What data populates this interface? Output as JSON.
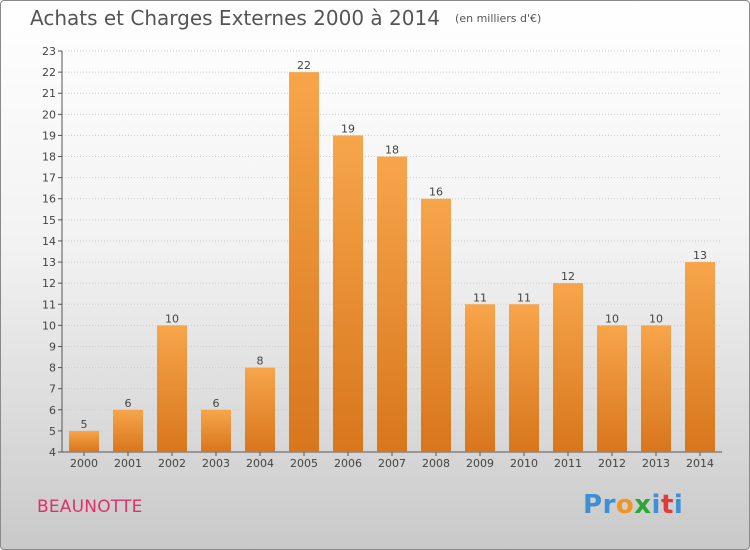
{
  "header": {
    "title": "Achats et Charges Externes 2000 à 2014",
    "subtitle": "(en milliers d'€)"
  },
  "footer": {
    "place": "BEAUNOTTE",
    "brand_letters": [
      {
        "char": "P",
        "color": "#3d8fd6"
      },
      {
        "char": "r",
        "color": "#3d8fd6"
      },
      {
        "char": "o",
        "color": "#f29422"
      },
      {
        "char": "x",
        "color": "#2aa836"
      },
      {
        "char": "i",
        "color": "#3d8fd6"
      },
      {
        "char": "t",
        "color": "#e03a3a"
      },
      {
        "char": "i",
        "color": "#3d8fd6"
      }
    ]
  },
  "colors": {
    "bar_light": "#f7a54b",
    "bar_dark": "#d8761c",
    "axis": "#555555",
    "grid": "#cccccc",
    "place": "#e0306a"
  },
  "chart_data": {
    "type": "bar",
    "title": "Achats et Charges Externes 2000 à 2014",
    "subtitle": "(en milliers d'€)",
    "xlabel": "",
    "ylabel": "",
    "categories": [
      "2000",
      "2001",
      "2002",
      "2003",
      "2004",
      "2005",
      "2006",
      "2007",
      "2008",
      "2009",
      "2010",
      "2011",
      "2012",
      "2013",
      "2014"
    ],
    "values": [
      5,
      6,
      10,
      6,
      8,
      22,
      19,
      18,
      16,
      11,
      11,
      12,
      10,
      10,
      13
    ],
    "ylim": [
      4,
      23
    ],
    "yticks": [
      4,
      5,
      6,
      7,
      8,
      9,
      10,
      11,
      12,
      13,
      14,
      15,
      16,
      17,
      18,
      19,
      20,
      21,
      22,
      23
    ],
    "grid": true,
    "data_labels": true
  }
}
